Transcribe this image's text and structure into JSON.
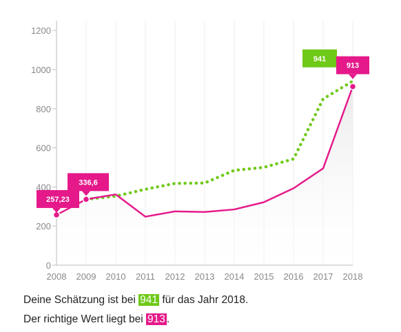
{
  "chart_data": {
    "type": "line",
    "x": [
      2008,
      2009,
      2010,
      2011,
      2012,
      2013,
      2014,
      2015,
      2016,
      2017,
      2018
    ],
    "xlim": [
      2008,
      2018
    ],
    "ylim": [
      0,
      1250
    ],
    "yticks": [
      0,
      200,
      400,
      600,
      800,
      1000,
      1200
    ],
    "grid": true,
    "series": [
      {
        "id": "actual",
        "style": "solid",
        "color": "#e5198a",
        "values": [
          257.23,
          336.6,
          362,
          248,
          275,
          272,
          285,
          322,
          393,
          495,
          913
        ]
      },
      {
        "id": "estimate",
        "style": "dotted",
        "color": "#6fc918",
        "values": [
          null,
          336.6,
          353,
          388,
          418,
          420,
          485,
          500,
          543,
          850,
          941
        ]
      }
    ],
    "annotations": [
      {
        "series": "actual",
        "x": 2008,
        "label": "257,23"
      },
      {
        "series": "actual",
        "x": 2009,
        "label": "336,6"
      },
      {
        "series": "estimate",
        "x": 2018,
        "label": "941"
      },
      {
        "series": "actual",
        "x": 2018,
        "label": "913"
      }
    ]
  },
  "summary": {
    "line1_pre": "Deine Schätzung ist bei ",
    "line1_value": "941",
    "line1_post": " für das Jahr 2018.",
    "line2_pre": "Der richtige Wert liegt bei ",
    "line2_value": "913",
    "line2_post": "."
  }
}
